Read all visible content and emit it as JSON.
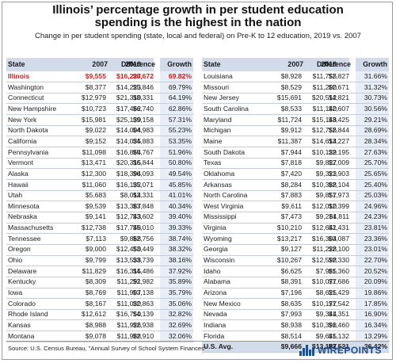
{
  "title": "Illinois’ percentage growth in per student education spending is the highest in the nation",
  "subtitle": "Change in per student spending (state, local and federal) on Pre-K to 12 education, 2019 vs. 2007",
  "headers": {
    "state": "State",
    "y2007": "2007",
    "y2019": "2019",
    "difference": "Difference",
    "growth": "Growth"
  },
  "source": "Source: U.S. Census Bureau, \"Annual Survey of School System Finances\"",
  "logo_text": "WIREPOINTS",
  "colors": {
    "highlight": "#d11a1a",
    "header_bg": "#d2dbea",
    "column_bg": "#e8eef7",
    "logo": "#1f4e8c"
  },
  "chart_data": {
    "type": "table",
    "highlight_state": "Illinois",
    "left_rows": [
      {
        "state": "Illinois",
        "y2007": "$9,555",
        "y2019": "$16,227",
        "difference": "$6,672",
        "growth": "69.82%"
      },
      {
        "state": "Washington",
        "y2007": "$8,377",
        "y2019": "$14,223",
        "difference": "$5,846",
        "growth": "69.79%"
      },
      {
        "state": "Connecticut",
        "y2007": "$12,979",
        "y2019": "$21,310",
        "difference": "$8,331",
        "growth": "64.19%"
      },
      {
        "state": "New Hampshire",
        "y2007": "$10,723",
        "y2019": "$17,462",
        "difference": "$6,740",
        "growth": "62.86%"
      },
      {
        "state": "New York",
        "y2007": "$15,981",
        "y2019": "$25,139",
        "difference": "$9,158",
        "growth": "57.31%"
      },
      {
        "state": "North Dakota",
        "y2007": "$9,022",
        "y2019": "$14,004",
        "difference": "$4,983",
        "growth": "55.23%"
      },
      {
        "state": "California",
        "y2007": "$9,152",
        "y2019": "$14,035",
        "difference": "$4,883",
        "growth": "53.35%"
      },
      {
        "state": "Pennsylvania",
        "y2007": "$11,098",
        "y2019": "$16,864",
        "difference": "$5,767",
        "growth": "51.96%"
      },
      {
        "state": "Vermont",
        "y2007": "$13,471",
        "y2019": "$20,315",
        "difference": "$6,844",
        "growth": "50.80%"
      },
      {
        "state": "Alaska",
        "y2007": "$12,300",
        "y2019": "$18,394",
        "difference": "$6,093",
        "growth": "49.54%"
      },
      {
        "state": "Hawaii",
        "y2007": "$11,060",
        "y2019": "$16,132",
        "difference": "$5,071",
        "growth": "45.85%"
      },
      {
        "state": "Utah",
        "y2007": "$5,683",
        "y2019": "$8,014",
        "difference": "$2,331",
        "growth": "41.01%"
      },
      {
        "state": "Minnesota",
        "y2007": "$9,539",
        "y2019": "$13,387",
        "difference": "$3,848",
        "growth": "40.34%"
      },
      {
        "state": "Nebraska",
        "y2007": "$9,141",
        "y2019": "$12,743",
        "difference": "$3,602",
        "growth": "39.40%"
      },
      {
        "state": "Massachusetts",
        "y2007": "$12,738",
        "y2019": "$17,748",
        "difference": "$5,010",
        "growth": "39.33%"
      },
      {
        "state": "Tennessee",
        "y2007": "$7,113",
        "y2019": "$9,868",
        "difference": "$2,756",
        "growth": "38.74%"
      },
      {
        "state": "Oregon",
        "y2007": "$9,000",
        "y2019": "$12,450",
        "difference": "$3,449",
        "growth": "38.32%"
      },
      {
        "state": "Ohio",
        "y2007": "$9,799",
        "y2019": "$13,538",
        "difference": "$3,739",
        "growth": "38.16%"
      },
      {
        "state": "Delaware",
        "y2007": "$11,829",
        "y2019": "$16,315",
        "difference": "$4,486",
        "growth": "37.92%"
      },
      {
        "state": "Kentucky",
        "y2007": "$8,309",
        "y2019": "$11,291",
        "difference": "$2,982",
        "growth": "35.89%"
      },
      {
        "state": "Iowa",
        "y2007": "$8,769",
        "y2019": "$11,907",
        "difference": "$3,138",
        "growth": "35.79%"
      },
      {
        "state": "Colorado",
        "y2007": "$8,167",
        "y2019": "$11,030",
        "difference": "$2,863",
        "growth": "35.06%"
      },
      {
        "state": "Rhode Island",
        "y2007": "$12,612",
        "y2019": "$16,750",
        "difference": "$4,139",
        "growth": "32.82%"
      },
      {
        "state": "Kansas",
        "y2007": "$8,988",
        "y2019": "$11,926",
        "difference": "$2,938",
        "growth": "32.69%"
      },
      {
        "state": "Montana",
        "y2007": "$9,078",
        "y2019": "$11,988",
        "difference": "$2,910",
        "growth": "32.06%"
      }
    ],
    "right_rows": [
      {
        "state": "Louisiana",
        "y2007": "$8,928",
        "y2019": "$11,755",
        "difference": "$2,827",
        "growth": "31.66%"
      },
      {
        "state": "Missouri",
        "y2007": "$8,529",
        "y2019": "$11,200",
        "difference": "$2,671",
        "growth": "31.32%"
      },
      {
        "state": "New Jersey",
        "y2007": "$15,691",
        "y2019": "$20,512",
        "difference": "$4,821",
        "growth": "30.73%"
      },
      {
        "state": "South Carolina",
        "y2007": "$8,533",
        "y2019": "$11,140",
        "difference": "$2,607",
        "growth": "30.56%"
      },
      {
        "state": "Maryland",
        "y2007": "$11,724",
        "y2019": "$15,148",
        "difference": "$3,425",
        "growth": "29.21%"
      },
      {
        "state": "Michigan",
        "y2007": "$9,912",
        "y2019": "$12,756",
        "difference": "$2,844",
        "growth": "28.69%"
      },
      {
        "state": "Maine",
        "y2007": "$11,387",
        "y2019": "$14,614",
        "difference": "$3,227",
        "growth": "28.34%"
      },
      {
        "state": "South Dakota",
        "y2007": "$7,944",
        "y2019": "$10,139",
        "difference": "$2,195",
        "growth": "27.63%"
      },
      {
        "state": "Texas",
        "y2007": "$7,818",
        "y2019": "$9,827",
        "difference": "$2,009",
        "growth": "25.70%"
      },
      {
        "state": "Oklahoma",
        "y2007": "$7,420",
        "y2019": "$9,323",
        "difference": "$1,903",
        "growth": "25.65%"
      },
      {
        "state": "Arkansas",
        "y2007": "$8,284",
        "y2019": "$10,388",
        "difference": "$2,104",
        "growth": "25.40%"
      },
      {
        "state": "North Carolina",
        "y2007": "$7,883",
        "y2019": "$9,857",
        "difference": "$1,973",
        "growth": "25.03%"
      },
      {
        "state": "West Virginia",
        "y2007": "$9,611",
        "y2019": "$12,010",
        "difference": "$2,399",
        "growth": "24.96%"
      },
      {
        "state": "Mississippi",
        "y2007": "$7,473",
        "y2019": "$9,284",
        "difference": "$1,811",
        "growth": "24.23%"
      },
      {
        "state": "Virginia",
        "y2007": "$10,210",
        "y2019": "$12,641",
        "difference": "$2,431",
        "growth": "23.81%"
      },
      {
        "state": "Wyoming",
        "y2007": "$13,217",
        "y2019": "$16,304",
        "difference": "$3,087",
        "growth": "23.36%"
      },
      {
        "state": "Georgia",
        "y2007": "$9,127",
        "y2019": "$11,228",
        "difference": "$2,100",
        "growth": "23.01%"
      },
      {
        "state": "Wisconsin",
        "y2007": "$10,267",
        "y2019": "$12,598",
        "difference": "$2,330",
        "growth": "22.70%"
      },
      {
        "state": "Idaho",
        "y2007": "$6,625",
        "y2019": "$7,985",
        "difference": "$1,360",
        "growth": "20.52%"
      },
      {
        "state": "Alabama",
        "y2007": "$8,391",
        "y2019": "$10,077",
        "difference": "$1,686",
        "growth": "20.09%"
      },
      {
        "state": "Arizona",
        "y2007": "$7,196",
        "y2019": "$8,625",
        "difference": "$1,429",
        "growth": "19.86%"
      },
      {
        "state": "New Mexico",
        "y2007": "$8,635",
        "y2019": "$10,177",
        "difference": "$1,542",
        "growth": "17.85%"
      },
      {
        "state": "Nevada",
        "y2007": "$7,993",
        "y2019": "$9,344",
        "difference": "$1,351",
        "growth": "16.90%"
      },
      {
        "state": "Indiana",
        "y2007": "$8,938",
        "y2019": "$10,398",
        "difference": "$1,460",
        "growth": "16.34%"
      },
      {
        "state": "Florida",
        "y2007": "$8,514",
        "y2019": "$9,645",
        "difference": "$1,132",
        "growth": "13.29%"
      }
    ],
    "average_row": {
      "state": "U.S. Avg.",
      "y2007": "$9,666",
      "y2019": "$13,187",
      "difference": "$3,521",
      "growth": "36.42%"
    }
  }
}
